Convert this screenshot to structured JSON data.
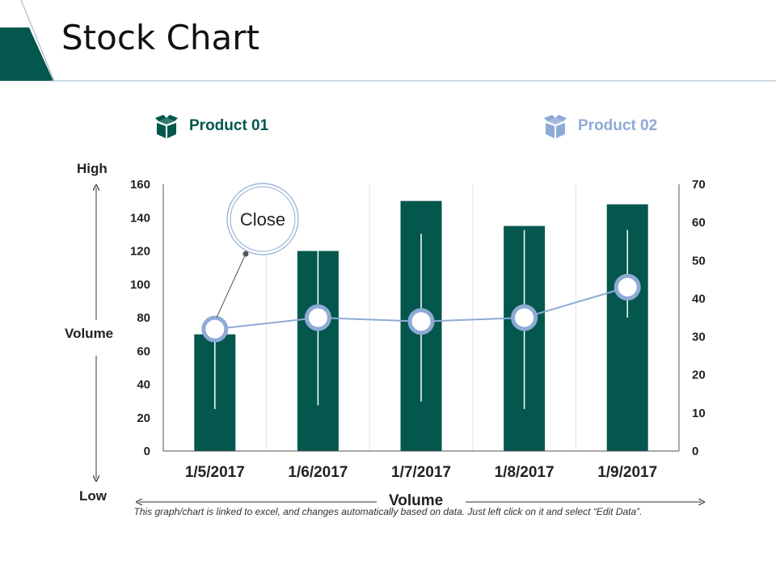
{
  "header": {
    "title": "Stock Chart"
  },
  "legend": [
    {
      "label": "Product 01",
      "color": "#03574d"
    },
    {
      "label": "Product 02",
      "color": "#8eaad6"
    }
  ],
  "annotation": {
    "label": "Close"
  },
  "side_labels": {
    "high": "High",
    "low": "Low",
    "left_volume": "Volume",
    "bottom_volume": "Volume"
  },
  "footnote": "This graph/chart is linked to excel, and changes automatically based on data. Just left click on it and select “Edit Data”.",
  "chart_data": {
    "type": "bar",
    "title": "Stock Chart",
    "categories": [
      "1/5/2017",
      "1/6/2017",
      "1/7/2017",
      "1/8/2017",
      "1/9/2017"
    ],
    "series": [
      {
        "name": "Product 01",
        "kind": "bar",
        "axis": "left",
        "color": "#03574d",
        "values": [
          70,
          120,
          150,
          135,
          148
        ]
      },
      {
        "name": "Product 02",
        "kind": "line",
        "axis": "right",
        "color": "#8eaad6",
        "values": [
          32,
          35,
          34,
          35,
          43
        ],
        "high": [
          35,
          53,
          57,
          58,
          58
        ],
        "low": [
          11,
          12,
          13,
          11,
          35
        ]
      }
    ],
    "y_left": {
      "min": 0,
      "max": 160,
      "ticks": [
        0,
        20,
        40,
        60,
        80,
        100,
        120,
        140,
        160
      ]
    },
    "y_right": {
      "min": 0,
      "max": 70,
      "ticks": [
        0,
        10,
        20,
        30,
        40,
        50,
        60,
        70
      ]
    },
    "xlabel": "Volume",
    "ylabel": "Volume"
  }
}
